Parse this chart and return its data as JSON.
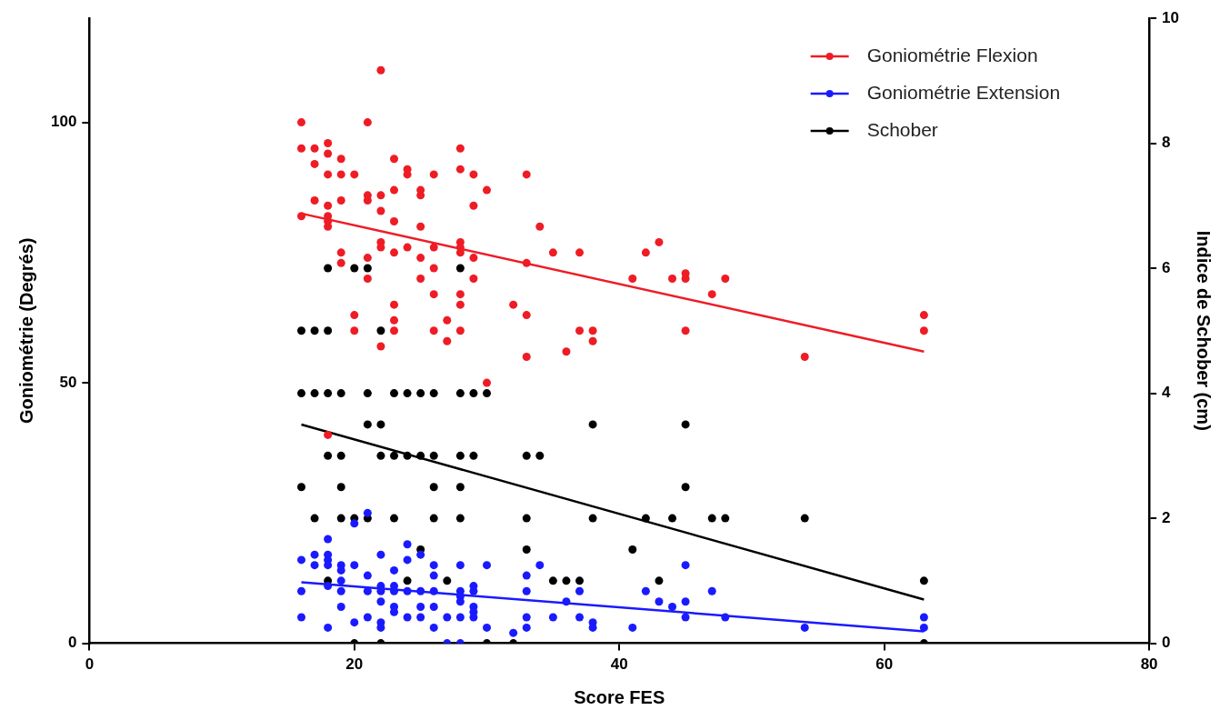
{
  "chart_data": {
    "type": "scatter",
    "xlabel": "Score FES",
    "ylabel": "Goniométrie (Degrés)",
    "y2label": "Indice de Schober (cm)",
    "xlim": [
      0,
      80
    ],
    "xticks": [
      0,
      20,
      40,
      60,
      80
    ],
    "ylim": [
      0,
      120
    ],
    "yticks": [
      0,
      50,
      100
    ],
    "y2lim": [
      0,
      10
    ],
    "y2ticks": [
      0,
      2,
      4,
      6,
      8,
      10
    ],
    "legend": "top right",
    "marker": "circle",
    "series": [
      {
        "name": "Goniométrie Flexion",
        "color": "#ee1c25",
        "x": [
          22,
          16,
          21,
          16,
          17,
          18,
          18,
          19,
          17,
          23,
          28,
          18,
          19,
          20,
          24,
          24,
          26,
          28,
          29,
          30,
          17,
          18,
          19,
          21,
          21,
          22,
          23,
          25,
          25,
          29,
          22,
          16,
          18,
          18,
          18,
          23,
          25,
          22,
          22,
          24,
          26,
          23,
          28,
          28,
          28,
          19,
          21,
          25,
          29,
          19,
          21,
          26,
          25,
          29,
          26,
          28,
          28,
          23,
          32,
          20,
          23,
          27,
          20,
          23,
          26,
          28,
          27,
          22,
          30,
          18,
          33,
          34,
          35,
          37,
          33,
          42,
          43,
          41,
          44,
          45,
          45,
          48,
          47,
          33,
          37,
          38,
          38,
          45,
          36,
          63,
          63,
          33,
          54
        ],
        "values": [
          110,
          100,
          100,
          95,
          95,
          96,
          94,
          93,
          92,
          93,
          95,
          90,
          90,
          90,
          91,
          90,
          90,
          91,
          90,
          87,
          85,
          84,
          85,
          86,
          85,
          86,
          87,
          87,
          86,
          84,
          83,
          82,
          82,
          81,
          80,
          81,
          80,
          77,
          76,
          76,
          76,
          75,
          77,
          76,
          75,
          75,
          74,
          74,
          74,
          73,
          70,
          72,
          70,
          70,
          67,
          67,
          65,
          65,
          65,
          63,
          62,
          62,
          60,
          60,
          60,
          60,
          58,
          57,
          50,
          40,
          90,
          80,
          75,
          75,
          73,
          75,
          77,
          70,
          70,
          71,
          70,
          70,
          67,
          63,
          60,
          60,
          58,
          60,
          56,
          63,
          60,
          55,
          55
        ]
      },
      {
        "name": "Goniométrie Extension",
        "color": "#1a1aff",
        "x": [
          21,
          20,
          18,
          24,
          25,
          16,
          17,
          17,
          18,
          18,
          18,
          19,
          19,
          20,
          22,
          24,
          23,
          21,
          26,
          26,
          28,
          30,
          18,
          19,
          19,
          16,
          21,
          22,
          22,
          23,
          23,
          24,
          25,
          26,
          28,
          28,
          28,
          29,
          29,
          22,
          19,
          23,
          23,
          25,
          26,
          29,
          29,
          29,
          16,
          21,
          24,
          25,
          27,
          28,
          22,
          22,
          20,
          18,
          26,
          30,
          32,
          27,
          28,
          34,
          33,
          33,
          33,
          33,
          35,
          36,
          37,
          37,
          38,
          38,
          41,
          42,
          43,
          44,
          45,
          45,
          45,
          47,
          48,
          54,
          63,
          63
        ],
        "values": [
          25,
          23,
          20,
          19,
          17,
          16,
          17,
          15,
          17,
          16,
          15,
          15,
          14,
          15,
          17,
          16,
          14,
          13,
          15,
          13,
          15,
          15,
          11,
          12,
          10,
          10,
          10,
          11,
          10,
          11,
          10,
          10,
          10,
          10,
          10,
          9,
          8,
          11,
          10,
          8,
          7,
          7,
          6,
          7,
          7,
          7,
          6,
          5,
          5,
          5,
          5,
          5,
          5,
          5,
          4,
          3,
          4,
          3,
          3,
          3,
          2,
          0,
          0,
          15,
          13,
          10,
          5,
          3,
          5,
          8,
          10,
          5,
          4,
          3,
          3,
          10,
          8,
          7,
          15,
          8,
          5,
          10,
          5,
          3,
          5,
          3
        ]
      },
      {
        "name": "Schober",
        "color": "#000000",
        "axis": "y2",
        "x": [
          18,
          20,
          21,
          28,
          16,
          17,
          18,
          22,
          16,
          17,
          18,
          19,
          21,
          23,
          24,
          25,
          26,
          28,
          29,
          30,
          21,
          22,
          38,
          45,
          18,
          19,
          22,
          23,
          24,
          25,
          26,
          28,
          29,
          33,
          34,
          16,
          19,
          26,
          28,
          45,
          17,
          19,
          20,
          21,
          23,
          26,
          28,
          33,
          38,
          42,
          44,
          47,
          48,
          54,
          25,
          33,
          41,
          18,
          24,
          27,
          35,
          36,
          37,
          43,
          63,
          20,
          22,
          30,
          32,
          63
        ],
        "values": [
          6,
          6,
          6,
          6,
          5,
          5,
          5,
          5,
          4,
          4,
          4,
          4,
          4,
          4,
          4,
          4,
          4,
          4,
          4,
          4,
          3.5,
          3.5,
          3.5,
          3.5,
          3,
          3,
          3,
          3,
          3,
          3,
          3,
          3,
          3,
          3,
          3,
          2.5,
          2.5,
          2.5,
          2.5,
          2.5,
          2,
          2,
          2,
          2,
          2,
          2,
          2,
          2,
          2,
          2,
          2,
          2,
          2,
          2,
          1.5,
          1.5,
          1.5,
          1,
          1,
          1,
          1,
          1,
          1,
          1,
          1,
          0,
          0,
          0,
          0,
          0
        ]
      },
      {
        "type": "line",
        "marker": "none",
        "color": "#ee1c25",
        "x": [
          16,
          63
        ],
        "values": [
          82.5,
          56
        ]
      },
      {
        "type": "line",
        "marker": "none",
        "color": "#1a1aff",
        "x": [
          16,
          63
        ],
        "values": [
          11.7,
          2.3
        ]
      },
      {
        "type": "line",
        "marker": "none",
        "color": "#000000",
        "axis": "y2",
        "x": [
          16,
          63
        ],
        "values": [
          3.5,
          0.7
        ]
      }
    ]
  }
}
